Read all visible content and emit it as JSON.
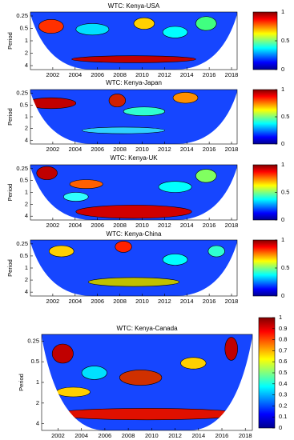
{
  "chart_data": [
    {
      "type": "wavelet-coherence",
      "title": "WTC: Kenya-USA",
      "ylabel": "Period",
      "log_y": true,
      "xlim": [
        2000,
        2018.5
      ],
      "xticks": [
        2002,
        2004,
        2006,
        2008,
        2010,
        2012,
        2014,
        2016,
        2018
      ],
      "ylim": [
        0.2,
        5
      ],
      "yticks": [
        0.25,
        0.5,
        1,
        2,
        4
      ],
      "clim": [
        0,
        1
      ],
      "cticks": [
        0,
        0.5,
        1
      ],
      "colormap": [
        "#00008f",
        "#0000ff",
        "#0080ff",
        "#00ffff",
        "#80ff80",
        "#ffff00",
        "#ff8000",
        "#ff0000",
        "#800000"
      ]
    },
    {
      "type": "wavelet-coherence",
      "title": "WTC: Kenya-Japan",
      "ylabel": "Period",
      "log_y": true,
      "xlim": [
        2000,
        2018.5
      ],
      "xticks": [
        2002,
        2004,
        2006,
        2008,
        2010,
        2012,
        2014,
        2016,
        2018
      ],
      "ylim": [
        0.2,
        5
      ],
      "yticks": [
        0.25,
        0.5,
        1,
        2,
        4
      ],
      "clim": [
        0,
        1
      ],
      "cticks": [
        0,
        0.5,
        1
      ],
      "colormap": [
        "#00008f",
        "#0000ff",
        "#0080ff",
        "#00ffff",
        "#80ff80",
        "#ffff00",
        "#ff8000",
        "#ff0000",
        "#800000"
      ]
    },
    {
      "type": "wavelet-coherence",
      "title": "WTC: Kenya-UK",
      "ylabel": "Period",
      "log_y": true,
      "xlim": [
        2000,
        2018.5
      ],
      "xticks": [
        2002,
        2004,
        2006,
        2008,
        2010,
        2012,
        2014,
        2016,
        2018
      ],
      "ylim": [
        0.2,
        5
      ],
      "yticks": [
        0.25,
        0.5,
        1,
        2,
        4
      ],
      "clim": [
        0,
        1
      ],
      "cticks": [
        0,
        0.5,
        1
      ],
      "colormap": [
        "#00008f",
        "#0000ff",
        "#0080ff",
        "#00ffff",
        "#80ff80",
        "#ffff00",
        "#ff8000",
        "#ff0000",
        "#800000"
      ]
    },
    {
      "type": "wavelet-coherence",
      "title": "WTC: Kenya-China",
      "ylabel": "Period",
      "log_y": true,
      "xlim": [
        2000,
        2018.5
      ],
      "xticks": [
        2002,
        2004,
        2006,
        2008,
        2010,
        2012,
        2014,
        2016,
        2018
      ],
      "ylim": [
        0.2,
        5
      ],
      "yticks": [
        0.25,
        0.5,
        1,
        2,
        4
      ],
      "clim": [
        0,
        1
      ],
      "cticks": [
        0,
        0.5,
        1
      ],
      "colormap": [
        "#00008f",
        "#0000ff",
        "#0080ff",
        "#00ffff",
        "#80ff80",
        "#ffff00",
        "#ff8000",
        "#ff0000",
        "#800000"
      ]
    },
    {
      "type": "wavelet-coherence",
      "title": "WTC: Kenya-Canada",
      "ylabel": "Period",
      "log_y": true,
      "xlim": [
        2000.6,
        2018.6
      ],
      "xticks": [
        2002,
        2004,
        2006,
        2008,
        2010,
        2012,
        2014,
        2016,
        2018
      ],
      "ylim": [
        0.2,
        5
      ],
      "yticks": [
        0.25,
        0.5,
        1,
        2,
        4
      ],
      "clim": [
        0,
        1
      ],
      "cticks": [
        0,
        0.1,
        0.2,
        0.3,
        0.4,
        0.5,
        0.6,
        0.7,
        0.8,
        0.9,
        1
      ],
      "colormap": [
        "#00008f",
        "#0000ff",
        "#0080ff",
        "#00ffff",
        "#80ff80",
        "#ffff00",
        "#ff8000",
        "#ff0000",
        "#800000"
      ]
    }
  ]
}
